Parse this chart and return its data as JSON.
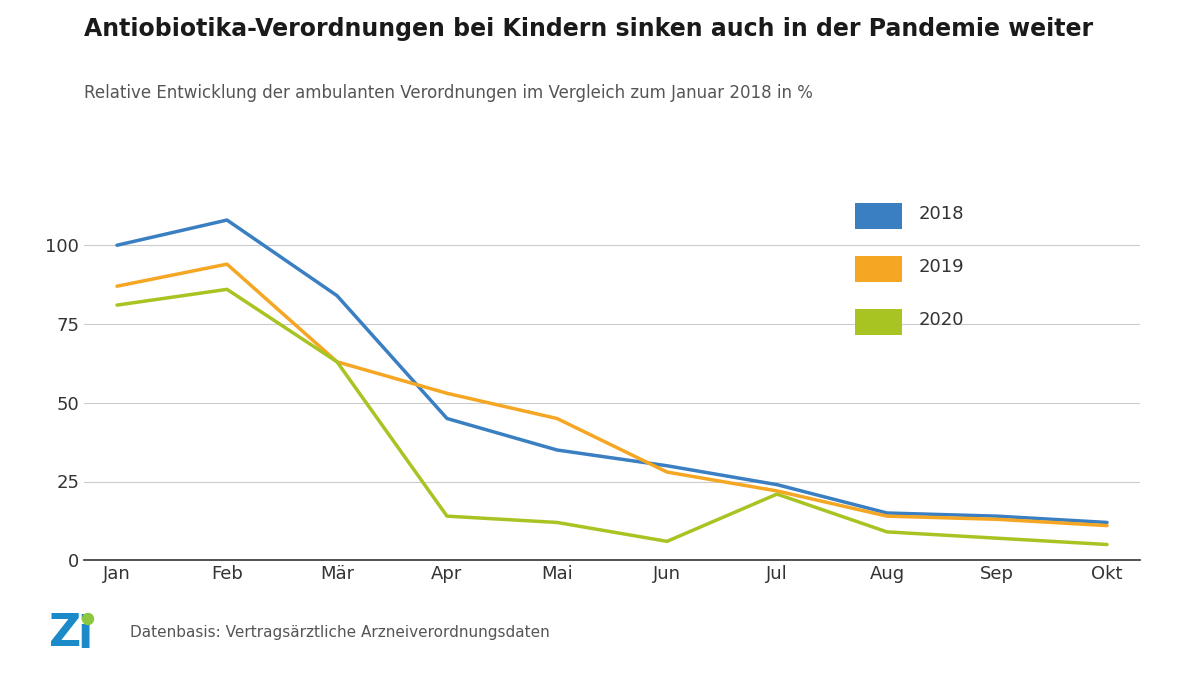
{
  "title": "Antiobiotika-Verordnungen bei Kindern sinken auch in der Pandemie weiter",
  "subtitle": "Relative Entwicklung der ambulanten Verordnungen im Vergleich zum Januar 2018 in %",
  "months": [
    "Jan",
    "Feb",
    "Mär",
    "Apr",
    "Mai",
    "Jun",
    "Jul",
    "Aug",
    "Sep",
    "Okt"
  ],
  "data_2018": [
    100,
    108,
    84,
    45,
    35,
    30,
    24,
    15,
    14,
    12
  ],
  "data_2019": [
    87,
    94,
    63,
    53,
    45,
    28,
    22,
    14,
    13,
    11
  ],
  "data_2020": [
    81,
    86,
    63,
    14,
    12,
    6,
    21,
    9,
    7,
    5
  ],
  "color_2018": "#3A7FC1",
  "color_2019": "#F5A623",
  "color_2020": "#A8C423",
  "ylim": [
    0,
    120
  ],
  "yticks": [
    0,
    25,
    50,
    75,
    100
  ],
  "linewidth": 2.5,
  "background_color": "#FFFFFF",
  "grid_color": "#CCCCCC",
  "footer_text": "Datenbasis: Vertragsärztliche Arzneiverordnungsdaten",
  "zi_blue": "#1A8AC8",
  "zi_green": "#8DC63F",
  "legend_labels": [
    "2018",
    "2019",
    "2020"
  ]
}
